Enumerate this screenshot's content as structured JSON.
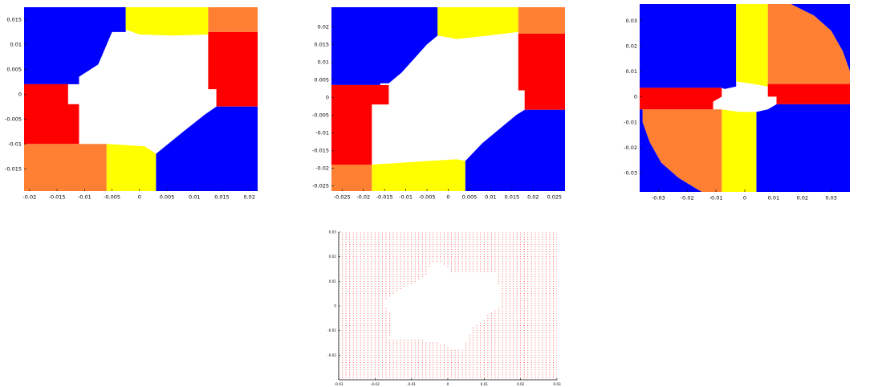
{
  "chart_data": [
    {
      "type": "heatmap",
      "title": "",
      "xlabel": "",
      "ylabel": "",
      "xlim": [
        -0.021,
        0.0215
      ],
      "ylim": [
        -0.0195,
        0.0175
      ],
      "xticks": [
        "-0.02",
        "-0.015",
        "-0.01",
        "-0.005",
        "0",
        "0.005",
        "0.01",
        "0.015",
        "0.02"
      ],
      "xtick_values": [
        -0.02,
        -0.015,
        -0.01,
        -0.005,
        0,
        0.005,
        0.01,
        0.015,
        0.02
      ],
      "yticks": [
        "-0.015",
        "-0.01",
        "-0.005",
        "0",
        "0.005",
        "0.01",
        "0.015"
      ],
      "ytick_values": [
        -0.015,
        -0.01,
        -0.005,
        0,
        0.005,
        0.01,
        0.015
      ],
      "grid": false,
      "colors": {
        "blue": "#0000ff",
        "yellow": "#ffff00",
        "orange": "#ff8033",
        "red": "#ff0000",
        "white": "#ffffff"
      },
      "regions": [
        {
          "color": "blue",
          "polygon": [
            [
              -0.021,
              0.0175
            ],
            [
              -0.0025,
              0.0175
            ],
            [
              -0.0025,
              0.0125
            ],
            [
              -0.005,
              0.0125
            ],
            [
              -0.0075,
              0.006
            ],
            [
              -0.011,
              0.0035
            ],
            [
              -0.011,
              0.002
            ],
            [
              -0.021,
              0.002
            ]
          ]
        },
        {
          "color": "yellow",
          "polygon": [
            [
              -0.0025,
              0.0175
            ],
            [
              0.0125,
              0.0175
            ],
            [
              0.0125,
              0.012
            ],
            [
              0.006,
              0.0118
            ],
            [
              0.0,
              0.012
            ],
            [
              -0.0025,
              0.013
            ]
          ]
        },
        {
          "color": "orange",
          "polygon": [
            [
              0.0125,
              0.0175
            ],
            [
              0.0215,
              0.0175
            ],
            [
              0.0215,
              0.0125
            ],
            [
              0.0125,
              0.0125
            ]
          ]
        },
        {
          "color": "red",
          "polygon": [
            [
              0.0125,
              0.0125
            ],
            [
              0.0215,
              0.0125
            ],
            [
              0.0215,
              -0.0025
            ],
            [
              0.014,
              -0.0025
            ],
            [
              0.014,
              0.001
            ],
            [
              0.0125,
              0.001
            ]
          ]
        },
        {
          "color": "blue",
          "polygon": [
            [
              0.0215,
              -0.0025
            ],
            [
              0.0215,
              -0.0195
            ],
            [
              0.003,
              -0.0195
            ],
            [
              0.003,
              -0.012
            ],
            [
              0.008,
              -0.0075
            ],
            [
              0.012,
              -0.004
            ],
            [
              0.014,
              -0.0025
            ]
          ]
        },
        {
          "color": "yellow",
          "polygon": [
            [
              0.003,
              -0.0195
            ],
            [
              -0.006,
              -0.0195
            ],
            [
              -0.006,
              -0.01
            ],
            [
              0.001,
              -0.0105
            ],
            [
              0.003,
              -0.012
            ]
          ]
        },
        {
          "color": "orange",
          "polygon": [
            [
              -0.006,
              -0.0195
            ],
            [
              -0.021,
              -0.0195
            ],
            [
              -0.021,
              -0.01
            ],
            [
              -0.006,
              -0.01
            ]
          ]
        },
        {
          "color": "red",
          "polygon": [
            [
              -0.021,
              -0.01
            ],
            [
              -0.011,
              -0.01
            ],
            [
              -0.011,
              -0.002
            ],
            [
              -0.013,
              -0.002
            ],
            [
              -0.013,
              0.002
            ],
            [
              -0.021,
              0.002
            ]
          ]
        }
      ]
    },
    {
      "type": "heatmap",
      "title": "",
      "xlabel": "",
      "ylabel": "",
      "xlim": [
        -0.0275,
        0.0275
      ],
      "ylim": [
        -0.0265,
        0.0255
      ],
      "xticks": [
        "-0.025",
        "-0.02",
        "-0.015",
        "-0.01",
        "-0.005",
        "0",
        "0.005",
        "0.01",
        "0.015",
        "0.02",
        "0.025"
      ],
      "xtick_values": [
        -0.025,
        -0.02,
        -0.015,
        -0.01,
        -0.005,
        0,
        0.005,
        0.01,
        0.015,
        0.02,
        0.025
      ],
      "yticks": [
        "-0.025",
        "-0.02",
        "-0.015",
        "-0.01",
        "-0.005",
        "0",
        "0.005",
        "0.01",
        "0.015",
        "0.02"
      ],
      "ytick_values": [
        -0.025,
        -0.02,
        -0.015,
        -0.01,
        -0.005,
        0,
        0.005,
        0.01,
        0.015,
        0.02
      ],
      "grid": false,
      "colors": {
        "blue": "#0000ff",
        "yellow": "#ffff00",
        "orange": "#ff8033",
        "red": "#ff0000",
        "white": "#ffffff"
      },
      "regions": [
        {
          "color": "blue",
          "polygon": [
            [
              -0.0275,
              0.0255
            ],
            [
              -0.0025,
              0.0255
            ],
            [
              -0.0025,
              0.0175
            ],
            [
              -0.005,
              0.015
            ],
            [
              -0.008,
              0.011
            ],
            [
              -0.011,
              0.007
            ],
            [
              -0.014,
              0.004
            ],
            [
              -0.016,
              0.004
            ],
            [
              -0.016,
              0.0035
            ],
            [
              -0.0275,
              0.0035
            ]
          ]
        },
        {
          "color": "yellow",
          "polygon": [
            [
              -0.0025,
              0.0255
            ],
            [
              0.0165,
              0.0255
            ],
            [
              0.0165,
              0.0185
            ],
            [
              0.0095,
              0.0175
            ],
            [
              0.002,
              0.0165
            ],
            [
              -0.0025,
              0.0175
            ]
          ]
        },
        {
          "color": "orange",
          "polygon": [
            [
              0.0165,
              0.0255
            ],
            [
              0.0275,
              0.0255
            ],
            [
              0.0275,
              0.018
            ],
            [
              0.0165,
              0.018
            ]
          ]
        },
        {
          "color": "red",
          "polygon": [
            [
              0.0165,
              0.018
            ],
            [
              0.0275,
              0.018
            ],
            [
              0.0275,
              -0.0035
            ],
            [
              0.018,
              -0.0035
            ],
            [
              0.018,
              0.002
            ],
            [
              0.0165,
              0.002
            ]
          ]
        },
        {
          "color": "blue",
          "polygon": [
            [
              0.0275,
              -0.0035
            ],
            [
              0.0275,
              -0.0265
            ],
            [
              0.004,
              -0.0265
            ],
            [
              0.004,
              -0.018
            ],
            [
              0.008,
              -0.013
            ],
            [
              0.012,
              -0.009
            ],
            [
              0.016,
              -0.005
            ],
            [
              0.018,
              -0.0035
            ]
          ]
        },
        {
          "color": "yellow",
          "polygon": [
            [
              0.004,
              -0.0265
            ],
            [
              -0.018,
              -0.0265
            ],
            [
              -0.018,
              -0.019
            ],
            [
              -0.005,
              -0.018
            ],
            [
              0.002,
              -0.0175
            ],
            [
              0.004,
              -0.018
            ]
          ]
        },
        {
          "color": "orange",
          "polygon": [
            [
              -0.018,
              -0.0265
            ],
            [
              -0.0275,
              -0.0265
            ],
            [
              -0.0275,
              -0.019
            ],
            [
              -0.018,
              -0.019
            ]
          ]
        },
        {
          "color": "red",
          "polygon": [
            [
              -0.0275,
              -0.019
            ],
            [
              -0.018,
              -0.019
            ],
            [
              -0.018,
              -0.002
            ],
            [
              -0.014,
              -0.002
            ],
            [
              -0.014,
              0.0035
            ],
            [
              -0.0275,
              0.0035
            ]
          ]
        }
      ]
    },
    {
      "type": "heatmap",
      "title": "",
      "xlabel": "",
      "ylabel": "",
      "xlim": [
        -0.0365,
        0.0365
      ],
      "ylim": [
        -0.0375,
        0.0365
      ],
      "xticks": [
        "-0.03",
        "-0.02",
        "-0.01",
        "0",
        "0.01",
        "0.02",
        "0.03"
      ],
      "xtick_values": [
        -0.03,
        -0.02,
        -0.01,
        0,
        0.01,
        0.02,
        0.03
      ],
      "yticks": [
        "-0.03",
        "-0.02",
        "-0.01",
        "0",
        "0.01",
        "0.02",
        "0.03"
      ],
      "ytick_values": [
        -0.03,
        -0.02,
        -0.01,
        0,
        0.01,
        0.02,
        0.03
      ],
      "grid": false,
      "colors": {
        "blue": "#0000ff",
        "yellow": "#ffff00",
        "orange": "#ff8033",
        "red": "#ff0000",
        "white": "#ffffff"
      },
      "regions": [
        {
          "color": "blue",
          "polygon": [
            [
              -0.0365,
              0.0365
            ],
            [
              -0.003,
              0.0365
            ],
            [
              -0.003,
              0.004
            ],
            [
              -0.007,
              0.003
            ],
            [
              -0.008,
              0.0035
            ],
            [
              -0.0365,
              0.0035
            ]
          ]
        },
        {
          "color": "yellow",
          "polygon": [
            [
              -0.003,
              0.0365
            ],
            [
              0.008,
              0.0365
            ],
            [
              0.008,
              0.004
            ],
            [
              0.003,
              0.005
            ],
            [
              -0.003,
              0.006
            ]
          ]
        },
        {
          "color": "orange",
          "polygon": [
            [
              0.008,
              0.0365
            ],
            [
              0.016,
              0.0365
            ],
            [
              0.024,
              0.032
            ],
            [
              0.03,
              0.026
            ],
            [
              0.034,
              0.018
            ],
            [
              0.0365,
              0.01
            ],
            [
              0.0365,
              0.005
            ],
            [
              0.008,
              0.005
            ]
          ]
        },
        {
          "color": "blue",
          "polygon": [
            [
              0.016,
              0.0365
            ],
            [
              0.0365,
              0.0365
            ],
            [
              0.0365,
              0.01
            ],
            [
              0.034,
              0.018
            ],
            [
              0.03,
              0.026
            ],
            [
              0.024,
              0.032
            ]
          ]
        },
        {
          "color": "red",
          "polygon": [
            [
              0.008,
              0.005
            ],
            [
              0.0365,
              0.005
            ],
            [
              0.0365,
              -0.003
            ],
            [
              0.011,
              -0.003
            ],
            [
              0.011,
              0.0
            ],
            [
              0.008,
              0.0
            ]
          ]
        },
        {
          "color": "blue",
          "polygon": [
            [
              0.0365,
              -0.003
            ],
            [
              0.0365,
              -0.0375
            ],
            [
              0.004,
              -0.0375
            ],
            [
              0.004,
              -0.006
            ],
            [
              0.008,
              -0.005
            ],
            [
              0.011,
              -0.003
            ]
          ]
        },
        {
          "color": "yellow",
          "polygon": [
            [
              0.004,
              -0.0375
            ],
            [
              -0.008,
              -0.0375
            ],
            [
              -0.008,
              -0.005
            ],
            [
              -0.002,
              -0.006
            ],
            [
              0.004,
              -0.006
            ]
          ]
        },
        {
          "color": "orange",
          "polygon": [
            [
              -0.008,
              -0.0375
            ],
            [
              -0.015,
              -0.0375
            ],
            [
              -0.023,
              -0.032
            ],
            [
              -0.029,
              -0.026
            ],
            [
              -0.033,
              -0.018
            ],
            [
              -0.0355,
              -0.01
            ],
            [
              -0.0355,
              -0.005
            ],
            [
              -0.008,
              -0.005
            ]
          ]
        },
        {
          "color": "blue",
          "polygon": [
            [
              -0.015,
              -0.0375
            ],
            [
              -0.0365,
              -0.0375
            ],
            [
              -0.0365,
              -0.005
            ],
            [
              -0.0355,
              -0.005
            ],
            [
              -0.0355,
              -0.01
            ],
            [
              -0.033,
              -0.018
            ],
            [
              -0.029,
              -0.026
            ],
            [
              -0.023,
              -0.032
            ]
          ]
        },
        {
          "color": "red",
          "polygon": [
            [
              -0.0365,
              0.0035
            ],
            [
              -0.008,
              0.0035
            ],
            [
              -0.008,
              0.0
            ],
            [
              -0.011,
              -0.002
            ],
            [
              -0.011,
              -0.005
            ],
            [
              -0.0365,
              -0.005
            ]
          ]
        }
      ]
    },
    {
      "type": "scatter",
      "title": "",
      "xlabel": "",
      "ylabel": "",
      "xlim": [
        -0.03,
        0.03
      ],
      "ylim": [
        -0.03,
        0.03
      ],
      "xticks": [
        "-0.03",
        "-0.02",
        "-0.01",
        "0",
        "0.01",
        "0.02",
        "0.03"
      ],
      "xtick_values": [
        -0.03,
        -0.02,
        -0.01,
        0,
        0.01,
        0.02,
        0.03
      ],
      "yticks": [
        "-0.02",
        "-0.01",
        "0",
        "0.01",
        "0.02",
        "0.03"
      ],
      "ytick_values": [
        -0.02,
        -0.01,
        0,
        0.01,
        0.02,
        0.03
      ],
      "grid": false,
      "point_color": "#ff0000",
      "point_spacing": 0.001,
      "empty_region": [
        [
          -0.018,
          0.002
        ],
        [
          -0.014,
          0.006
        ],
        [
          -0.01,
          0.009
        ],
        [
          -0.006,
          0.012
        ],
        [
          -0.004,
          0.018
        ],
        [
          -0.001,
          0.017
        ],
        [
          0.001,
          0.014
        ],
        [
          0.006,
          0.014
        ],
        [
          0.013,
          0.014
        ],
        [
          0.014,
          0.009
        ],
        [
          0.015,
          0.004
        ],
        [
          0.014,
          -0.001
        ],
        [
          0.011,
          -0.004
        ],
        [
          0.007,
          -0.009
        ],
        [
          0.004,
          -0.018
        ],
        [
          0.001,
          -0.017
        ],
        [
          -0.002,
          -0.015
        ],
        [
          -0.006,
          -0.014
        ],
        [
          -0.012,
          -0.013
        ],
        [
          -0.016,
          -0.013
        ],
        [
          -0.015,
          -0.007
        ],
        [
          -0.016,
          -0.002
        ]
      ]
    }
  ]
}
